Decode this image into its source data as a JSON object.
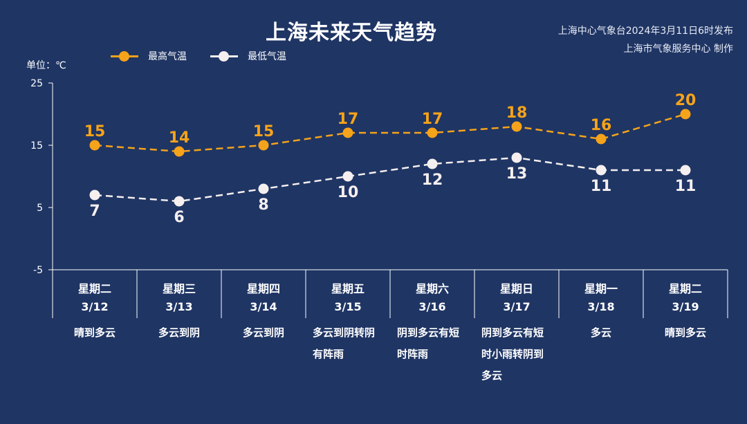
{
  "header": {
    "title": "上海未来天气趋势",
    "publisher": "上海中心气象台2024年3月11日6时发布",
    "producer": "上海市气象服务中心 制作"
  },
  "colors": {
    "background": "#1f3564",
    "high": "#f5a31a",
    "low": "#f5efef",
    "axis": "#ffffff"
  },
  "chart_data": {
    "type": "line",
    "unit_label": "单位：℃",
    "ylim": [
      -5,
      25
    ],
    "yticks": [
      -5,
      5,
      15,
      25
    ],
    "grid": false,
    "legend_position": "top-left",
    "categories": [
      "3/12",
      "3/13",
      "3/14",
      "3/15",
      "3/16",
      "3/17",
      "3/18",
      "3/19"
    ],
    "days": [
      {
        "weekday": "星期二",
        "date": "3/12",
        "weather": "晴到多云"
      },
      {
        "weekday": "星期三",
        "date": "3/13",
        "weather": "多云到阴"
      },
      {
        "weekday": "星期四",
        "date": "3/14",
        "weather": "多云到阴"
      },
      {
        "weekday": "星期五",
        "date": "3/15",
        "weather": "多云到阴转阴有阵雨"
      },
      {
        "weekday": "星期六",
        "date": "3/16",
        "weather": "阴到多云有短时阵雨"
      },
      {
        "weekday": "星期日",
        "date": "3/17",
        "weather": "阴到多云有短时小雨转阴到多云"
      },
      {
        "weekday": "星期一",
        "date": "3/18",
        "weather": "多云"
      },
      {
        "weekday": "星期二",
        "date": "3/19",
        "weather": "晴到多云"
      }
    ],
    "series": [
      {
        "name": "最高气温",
        "values": [
          15,
          14,
          15,
          17,
          17,
          18,
          16,
          20
        ]
      },
      {
        "name": "最低气温",
        "values": [
          7,
          6,
          8,
          10,
          12,
          13,
          11,
          11
        ]
      }
    ]
  }
}
